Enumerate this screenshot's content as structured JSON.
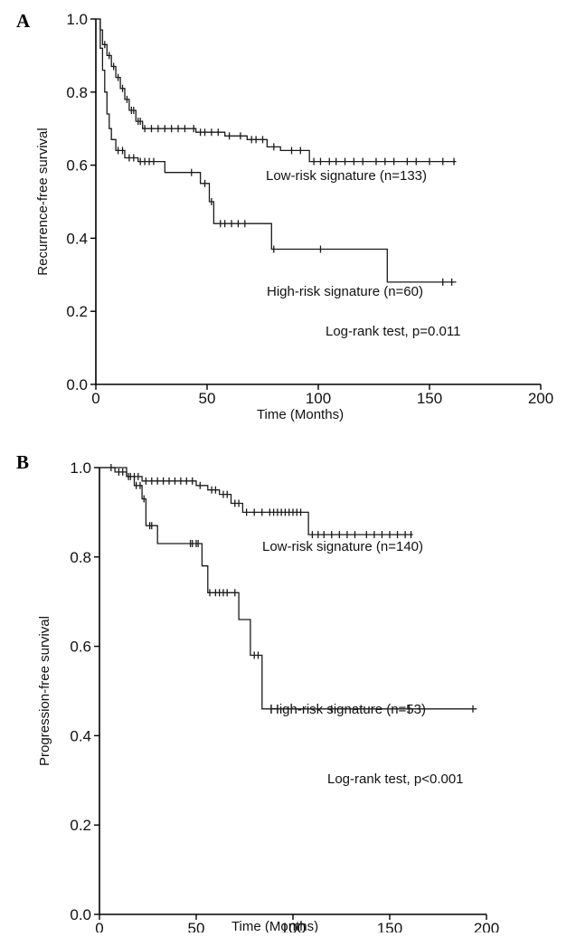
{
  "chart_data": [
    {
      "type": "line",
      "panel_label": "A",
      "xlabel": "Time (Months)",
      "ylabel": "Recurrence-free survival",
      "xlim": [
        0,
        200
      ],
      "ylim": [
        0,
        1.0
      ],
      "x_ticks": [
        "0",
        "50",
        "100",
        "150",
        "200"
      ],
      "y_ticks": [
        "0.0",
        "0.2",
        "0.4",
        "0.6",
        "0.8",
        "1.0"
      ],
      "grid": false,
      "annotation": "Log-rank test, p=0.011",
      "series": [
        {
          "name": "Low-risk signature (n=133)",
          "steps": [
            [
              0,
              1.0
            ],
            [
              2,
              0.97
            ],
            [
              3,
              0.93
            ],
            [
              5,
              0.9
            ],
            [
              7,
              0.87
            ],
            [
              9,
              0.84
            ],
            [
              11,
              0.81
            ],
            [
              13,
              0.78
            ],
            [
              15,
              0.75
            ],
            [
              18,
              0.72
            ],
            [
              21,
              0.7
            ],
            [
              45,
              0.69
            ],
            [
              58,
              0.68
            ],
            [
              68,
              0.67
            ],
            [
              77,
              0.65
            ],
            [
              83,
              0.64
            ],
            [
              96,
              0.61
            ]
          ],
          "end_x": 162,
          "censored": [
            4,
            6,
            8,
            10,
            12,
            14,
            16,
            17,
            19,
            20,
            22,
            25,
            28,
            31,
            34,
            37,
            40,
            44,
            47,
            49,
            52,
            55,
            60,
            65,
            70,
            72,
            75,
            80,
            88,
            92,
            98,
            101,
            105,
            108,
            112,
            116,
            120,
            126,
            130,
            134,
            140,
            144,
            150,
            156,
            161
          ]
        },
        {
          "name": "High-risk signature (n=60)",
          "steps": [
            [
              0,
              1.0
            ],
            [
              2,
              0.92
            ],
            [
              3,
              0.86
            ],
            [
              4,
              0.8
            ],
            [
              5,
              0.74
            ],
            [
              6,
              0.7
            ],
            [
              7,
              0.67
            ],
            [
              9,
              0.64
            ],
            [
              13,
              0.62
            ],
            [
              19,
              0.61
            ],
            [
              31,
              0.58
            ],
            [
              47,
              0.55
            ],
            [
              51,
              0.5
            ],
            [
              53,
              0.44
            ],
            [
              79,
              0.37
            ],
            [
              131,
              0.28
            ]
          ],
          "end_x": 162,
          "censored": [
            10,
            12,
            15,
            17,
            20,
            22,
            24,
            26,
            43,
            49,
            52,
            56,
            58,
            61,
            64,
            67,
            80,
            101,
            156,
            160
          ]
        }
      ]
    },
    {
      "type": "line",
      "panel_label": "B",
      "xlabel": "Time (Months)",
      "ylabel": "Progression-free survival",
      "xlim": [
        0,
        200
      ],
      "ylim": [
        0,
        1.0
      ],
      "x_ticks": [
        "0",
        "50",
        "100",
        "150",
        "200"
      ],
      "y_ticks": [
        "0.0",
        "0.2",
        "0.4",
        "0.6",
        "0.8",
        "1.0"
      ],
      "grid": false,
      "annotation": "Log-rank test, p<0.001",
      "series": [
        {
          "name": "Low-risk signature (n=140)",
          "steps": [
            [
              0,
              1.0
            ],
            [
              8,
              0.99
            ],
            [
              14,
              0.98
            ],
            [
              22,
              0.97
            ],
            [
              50,
              0.96
            ],
            [
              56,
              0.95
            ],
            [
              62,
              0.94
            ],
            [
              68,
              0.92
            ],
            [
              74,
              0.9
            ],
            [
              108,
              0.85
            ]
          ],
          "end_x": 162,
          "censored": [
            6,
            10,
            12,
            16,
            18,
            20,
            24,
            27,
            30,
            33,
            36,
            39,
            42,
            45,
            48,
            52,
            58,
            60,
            64,
            66,
            70,
            72,
            76,
            80,
            84,
            88,
            90,
            92,
            94,
            96,
            98,
            100,
            102,
            104,
            110,
            113,
            116,
            120,
            124,
            128,
            132,
            138,
            142,
            146,
            150,
            154,
            158,
            161
          ]
        },
        {
          "name": "High-risk signature (n=53)",
          "steps": [
            [
              0,
              1.0
            ],
            [
              14,
              0.98
            ],
            [
              18,
              0.96
            ],
            [
              22,
              0.93
            ],
            [
              24,
              0.87
            ],
            [
              30,
              0.83
            ],
            [
              53,
              0.78
            ],
            [
              56,
              0.72
            ],
            [
              72,
              0.66
            ],
            [
              78,
              0.58
            ],
            [
              84,
              0.46
            ]
          ],
          "end_x": 195,
          "censored": [
            15,
            19,
            21,
            23,
            26,
            27,
            47,
            48,
            50,
            51,
            57,
            60,
            62,
            64,
            66,
            70,
            80,
            82,
            120,
            160,
            193
          ]
        }
      ]
    }
  ]
}
